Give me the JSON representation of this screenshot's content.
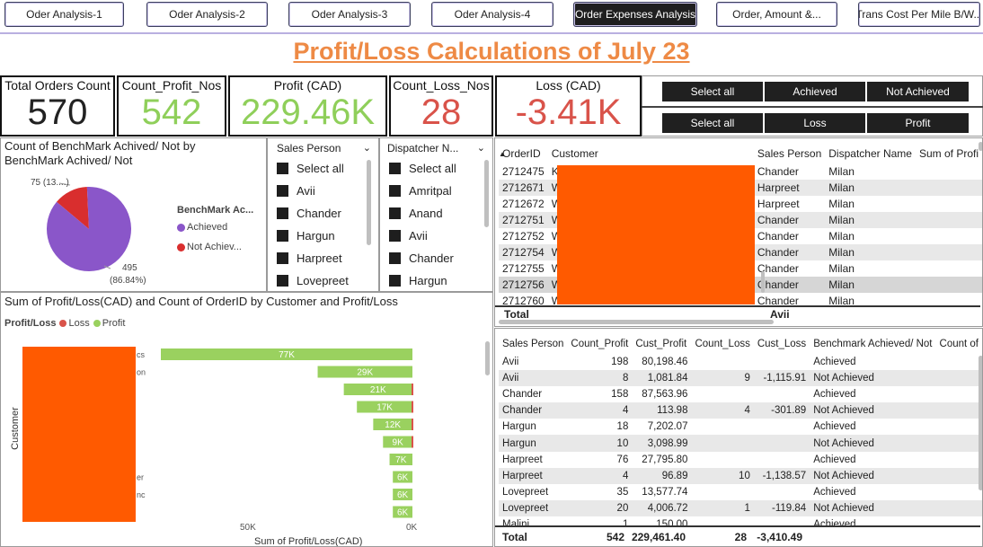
{
  "nav": {
    "tabs": [
      {
        "label": "Oder Analysis-1",
        "active": false
      },
      {
        "label": "Oder Analysis-2",
        "active": false
      },
      {
        "label": "Oder Analysis-3",
        "active": false
      },
      {
        "label": "Oder Analysis-4",
        "active": false
      },
      {
        "label": "Order Expenses Analysis",
        "active": true
      },
      {
        "label": "Order, Amount &...",
        "active": false
      },
      {
        "label": "Trans Cost Per Mile B/W...",
        "active": false
      }
    ]
  },
  "title": "Profit/Loss Calculations of July 23",
  "kpis": {
    "total_orders": {
      "label": "Total Orders Count",
      "value": "570",
      "color": "#222222"
    },
    "count_profit": {
      "label": "Count_Profit_Nos",
      "value": "542",
      "color": "#8fcf5a"
    },
    "profit": {
      "label": "Profit (CAD)",
      "value": "229.46K",
      "color": "#8fcf5a"
    },
    "count_loss": {
      "label": "Count_Loss_Nos",
      "value": "28",
      "color": "#d9534a"
    },
    "loss": {
      "label": "Loss (CAD)",
      "value": "-3.41K",
      "color": "#d9534a"
    }
  },
  "filters": {
    "row1": [
      "Select all",
      "Achieved",
      "Not Achieved"
    ],
    "row2": [
      "Select all",
      "Loss",
      "Profit"
    ]
  },
  "pie": {
    "title": "Count of BenchMark Achived/ Not by BenchMark Achived/ Not",
    "legend_title": "BenchMark Ac...",
    "legend": [
      {
        "label": "Achieved",
        "color": "#8a56c9"
      },
      {
        "label": "Not Achiev...",
        "color": "#d92e2e"
      }
    ],
    "label_not_achieved": "75 (13....)",
    "label_achieved_1": "495",
    "label_achieved_2": "(86.84%)"
  },
  "slicer_sales": {
    "header": "Sales Person",
    "items": [
      "Select all",
      "Avii",
      "Chander",
      "Hargun",
      "Harpreet",
      "Lovepreet"
    ]
  },
  "slicer_dispatcher": {
    "header": "Dispatcher N...",
    "items": [
      "Select all",
      "Amritpal",
      "Anand",
      "Avii",
      "Chander",
      "Hargun"
    ]
  },
  "orders_table": {
    "headers": [
      "OrderID",
      "Customer",
      "Sales Person",
      "Dispatcher Name",
      "Sum of Profi"
    ],
    "rows": [
      {
        "id": "2712475",
        "c": "K",
        "sp": "Chander",
        "dn": "Milan"
      },
      {
        "id": "2712671",
        "c": "W",
        "sp": "Harpreet",
        "dn": "Milan"
      },
      {
        "id": "2712672",
        "c": "W",
        "sp": "Harpreet",
        "dn": "Milan"
      },
      {
        "id": "2712751",
        "c": "W",
        "sp": "Chander",
        "dn": "Milan"
      },
      {
        "id": "2712752",
        "c": "W",
        "sp": "Chander",
        "dn": "Milan"
      },
      {
        "id": "2712754",
        "c": "W",
        "sp": "Chander",
        "dn": "Milan"
      },
      {
        "id": "2712755",
        "c": "W",
        "sp": "Chander",
        "dn": "Milan"
      },
      {
        "id": "2712756",
        "c": "W",
        "sp": "Chander",
        "dn": "Milan"
      },
      {
        "id": "2712760",
        "c": "W",
        "sp": "Chander",
        "dn": "Milan"
      }
    ],
    "total_label": "Total",
    "total_sales": "Avii"
  },
  "summary_table": {
    "headers": [
      "Sales Person",
      "Count_Profit",
      "Cust_Profit",
      "Count_Loss",
      "Cust_Loss",
      "Benchmark Achieved/ Not",
      "Count of"
    ],
    "rows": [
      {
        "sp": "Avii",
        "cp": "198",
        "cpr": "80,198.46",
        "cl": "",
        "clo": "",
        "b": "Achieved"
      },
      {
        "sp": "Avii",
        "cp": "8",
        "cpr": "1,081.84",
        "cl": "9",
        "clo": "-1,115.91",
        "b": "Not Achieved"
      },
      {
        "sp": "Chander",
        "cp": "158",
        "cpr": "87,563.96",
        "cl": "",
        "clo": "",
        "b": "Achieved"
      },
      {
        "sp": "Chander",
        "cp": "4",
        "cpr": "113.98",
        "cl": "4",
        "clo": "-301.89",
        "b": "Not Achieved"
      },
      {
        "sp": "Hargun",
        "cp": "18",
        "cpr": "7,202.07",
        "cl": "",
        "clo": "",
        "b": "Achieved"
      },
      {
        "sp": "Hargun",
        "cp": "10",
        "cpr": "3,098.99",
        "cl": "",
        "clo": "",
        "b": "Not Achieved"
      },
      {
        "sp": "Harpreet",
        "cp": "76",
        "cpr": "27,795.80",
        "cl": "",
        "clo": "",
        "b": "Achieved"
      },
      {
        "sp": "Harpreet",
        "cp": "4",
        "cpr": "96.89",
        "cl": "10",
        "clo": "-1,138.57",
        "b": "Not Achieved"
      },
      {
        "sp": "Lovepreet",
        "cp": "35",
        "cpr": "13,577.74",
        "cl": "",
        "clo": "",
        "b": "Achieved"
      },
      {
        "sp": "Lovepreet",
        "cp": "20",
        "cpr": "4,006.72",
        "cl": "1",
        "clo": "-119.84",
        "b": "Not Achieved"
      },
      {
        "sp": "Malini",
        "cp": "1",
        "cpr": "150.00",
        "cl": "",
        "clo": "",
        "b": "Achieved"
      }
    ],
    "total": {
      "sp": "Total",
      "cp": "542",
      "cpr": "229,461.40",
      "cl": "28",
      "clo": "-3,410.49"
    }
  },
  "bar": {
    "title": "Sum of Profit/Loss(CAD) and Count of OrderID by Customer and Profit/Loss",
    "legend_title": "Profit/Loss",
    "legend": [
      {
        "label": "Loss",
        "color": "#d9534a"
      },
      {
        "label": "Profit",
        "color": "#9ad15f"
      }
    ],
    "ylabel": "Customer",
    "xlabel": "Sum of Profit/Loss(CAD)",
    "xticks": [
      "50K",
      "0K"
    ],
    "cat_suffixes": [
      "cs",
      "on",
      "",
      "",
      "",
      "",
      "",
      "er",
      "nc",
      ""
    ]
  },
  "chart_data": {
    "type": "bar",
    "title": "Sum of Profit/Loss(CAD) and Count of OrderID by Customer and Profit/Loss",
    "xlabel": "Sum of Profit/Loss(CAD)",
    "ylabel": "Customer",
    "xlim": [
      0,
      77000
    ],
    "series": [
      {
        "name": "Profit",
        "values": [
          77000,
          29000,
          21000,
          17000,
          12000,
          9000,
          7000,
          6000,
          6000,
          6000
        ]
      }
    ],
    "data_labels": [
      "77K",
      "29K",
      "21K",
      "17K",
      "12K",
      "9K",
      "7K",
      "6K",
      "6K",
      "6K"
    ],
    "colors": {
      "Profit": "#9ad15f",
      "Loss": "#d9534a"
    }
  }
}
